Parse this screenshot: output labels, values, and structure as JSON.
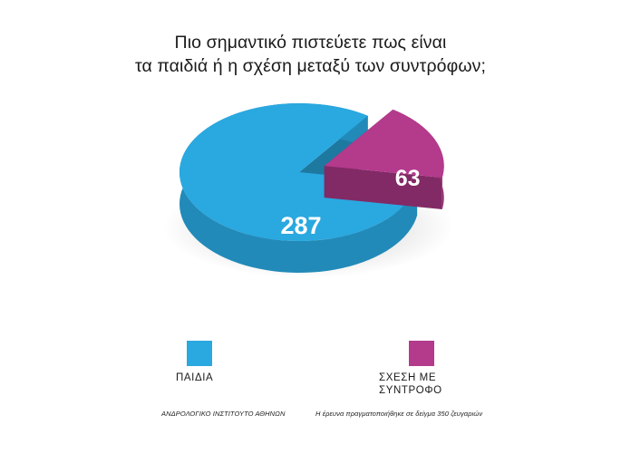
{
  "chart_data": {
    "type": "pie",
    "title_lines": [
      "Πιο σημαντικό πιστεύετε πως είναι",
      "τα παιδιά ή η σχέση μεταξύ των συντρόφων;"
    ],
    "categories": [
      "ΠΑΙΔΙΑ",
      "ΣΧΕΣΗ ΜΕ\nΣΥΝΤΡΟΦΟ"
    ],
    "values": [
      287,
      63
    ],
    "data_labels": [
      "287",
      "63"
    ],
    "colors": [
      "#2aa8e0",
      "#b43a8c"
    ],
    "style": "3d-exploded",
    "legend_position": "bottom"
  },
  "footer": {
    "source": "ΑΝΔΡΟΛΟΓΙΚΟ ΙΝΣΤΙΤΟΥΤΟ ΑΘΗΝΩΝ",
    "note": "Η έρευνα πραγματοποιήθηκε σε δείγμα 350 ζευγαριών"
  }
}
